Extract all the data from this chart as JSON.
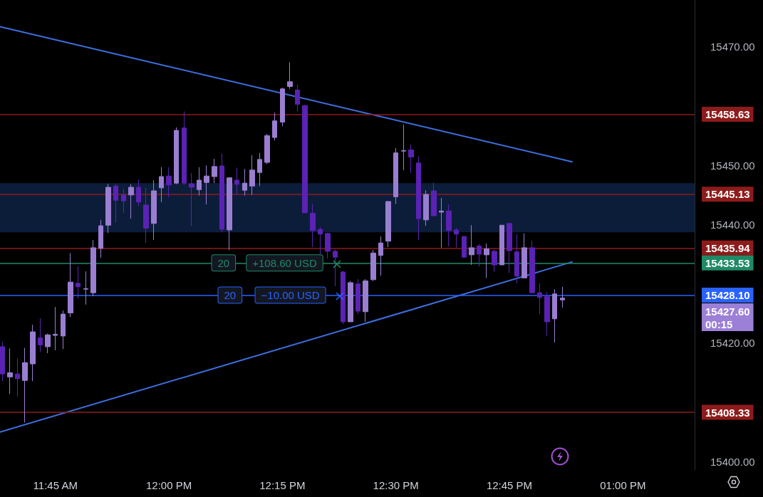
{
  "chart_data": {
    "type": "candlestick",
    "xlim": [
      11.628,
      13.158
    ],
    "xticks": [
      {
        "value": 11.75,
        "label": "11:45 AM"
      },
      {
        "value": 12,
        "label": "12:00 PM"
      },
      {
        "value": 12.25,
        "label": "12:15 PM"
      },
      {
        "value": 12.5,
        "label": "12:30 PM"
      },
      {
        "value": 12.75,
        "label": "12:45 PM"
      },
      {
        "value": 13,
        "label": "01:00 PM"
      }
    ],
    "ylim": [
      15398.6,
      15477.9
    ],
    "yticks": [
      {
        "value": 15400,
        "label": "15400.00"
      },
      {
        "value": 15420,
        "label": "15420.00"
      },
      {
        "value": 15440,
        "label": "15440.00"
      },
      {
        "value": 15450,
        "label": "15450.00"
      },
      {
        "value": 15470,
        "label": "15470.00"
      }
    ],
    "grid": false,
    "series": [
      {
        "type": "candlestick",
        "color": "#9a7ed1",
        "x": [
          11.65,
          11.6833,
          11.7,
          11.7333,
          11.75,
          11.7667,
          11.7833,
          11.8167,
          11.8333,
          11.85,
          11.8667,
          11.9167,
          11.9667,
          11.9833,
          12.0167,
          12.0667,
          12.0833,
          12.1,
          12.1333,
          12.1667,
          12.1833,
          12.2,
          12.2167,
          12.2333,
          12.25,
          12.2667,
          12.4,
          12.4333,
          12.45,
          12.4667,
          12.4833,
          12.5,
          12.5167,
          12.5667,
          12.6,
          12.6667,
          12.7,
          12.7333,
          12.7833,
          12.85,
          12.8667
        ],
        "ohlc": [
          [
            15414.3,
            15419.1,
            15411.4,
            15415.0
          ],
          [
            15413.7,
            15419.2,
            15406.6,
            15416.7
          ],
          [
            15416.5,
            15423.1,
            15413.6,
            15421.9
          ],
          [
            15419.4,
            15421.6,
            15418.3,
            15421.4
          ],
          [
            15421.3,
            15426.1,
            15418.8,
            15421.5
          ],
          [
            15421.2,
            15425.5,
            15419.0,
            15424.9
          ],
          [
            15425.1,
            15435.2,
            15424.4,
            15430.3
          ],
          [
            15429.1,
            15432.1,
            15426.5,
            15429.2
          ],
          [
            15428.5,
            15437.4,
            15427.9,
            15436.1
          ],
          [
            15436.0,
            15440.8,
            15434.4,
            15439.8
          ],
          [
            15439.9,
            15446.9,
            15438.6,
            15446.3
          ],
          [
            15445.0,
            15446.8,
            15441.0,
            15446.3
          ],
          [
            15440.2,
            15447.5,
            15437.4,
            15445.7
          ],
          [
            15446.2,
            15449.7,
            15443.8,
            15448.1
          ],
          [
            15447.0,
            15456.4,
            15446.8,
            15455.9
          ],
          [
            15445.9,
            15449.7,
            15444.9,
            15447.5
          ],
          [
            15447.1,
            15450.0,
            15443.4,
            15448.2
          ],
          [
            15448.1,
            15451.1,
            15447.0,
            15449.8
          ],
          [
            15439.1,
            15447.9,
            15435.7,
            15447.9
          ],
          [
            15445.8,
            15449.4,
            15444.9,
            15447.0
          ],
          [
            15446.5,
            15451.7,
            15445.0,
            15449.2
          ],
          [
            15448.8,
            15452.1,
            15446.5,
            15451.0
          ],
          [
            15450.5,
            15455.3,
            15450.2,
            15455.0
          ],
          [
            15454.7,
            15458.9,
            15454.2,
            15457.5
          ],
          [
            15457.3,
            15463.1,
            15456.6,
            15462.9
          ],
          [
            15463.3,
            15467.4,
            15462.9,
            15464.1
          ],
          [
            15423.6,
            15430.5,
            15423.6,
            15430.2
          ],
          [
            15425.3,
            15430.8,
            15423.6,
            15430.5
          ],
          [
            15430.7,
            15435.7,
            15430.5,
            15435.2
          ],
          [
            15434.8,
            15438.0,
            15431.4,
            15436.9
          ],
          [
            15437.2,
            15443.9,
            15436.2,
            15443.9
          ],
          [
            15444.7,
            15452.9,
            15443.5,
            15452.1
          ],
          [
            15452.4,
            15456.9,
            15449.2,
            15452.5
          ],
          [
            15440.8,
            15445.8,
            15439.8,
            15445.1
          ],
          [
            15442.1,
            15444.5,
            15436.1,
            15442.3
          ],
          [
            15434.9,
            15439.9,
            15433.2,
            15436.1
          ],
          [
            15434.9,
            15436.8,
            15431.0,
            15435.9
          ],
          [
            15433.2,
            15439.9,
            15433.2,
            15439.9
          ],
          [
            15431.0,
            15438.5,
            15431.0,
            15436.1
          ],
          [
            15424.1,
            15429.1,
            15420.1,
            15428.3
          ],
          [
            15427.3,
            15429.5,
            15426.0,
            15427.6
          ]
        ]
      },
      {
        "type": "candlestick",
        "color": "#5b22b5",
        "x": [
          11.6333,
          11.6667,
          11.7167,
          11.8,
          11.8833,
          11.9,
          11.9333,
          11.95,
          12,
          12.0333,
          12.05,
          12.1167,
          12.15,
          12.2833,
          12.3,
          12.3167,
          12.3333,
          12.35,
          12.3667,
          12.3833,
          12.4167,
          12.5333,
          12.55,
          12.5833,
          12.6167,
          12.6333,
          12.65,
          12.6833,
          12.7167,
          12.75,
          12.7667,
          12.8,
          12.8167,
          12.8333
        ],
        "ohlc": [
          [
            15419.4,
            15420.2,
            15413.6,
            15414.8
          ],
          [
            15414.8,
            15417.4,
            15411.0,
            15414.0
          ],
          [
            15420.9,
            15424.2,
            15418.5,
            15419.7
          ],
          [
            15430.1,
            15433.0,
            15427.5,
            15429.5
          ],
          [
            15446.5,
            15446.9,
            15440.4,
            15444.1
          ],
          [
            15445.0,
            15446.0,
            15442.0,
            15444.0
          ],
          [
            15446.3,
            15447.6,
            15443.1,
            15443.8
          ],
          [
            15443.3,
            15446.2,
            15436.9,
            15439.4
          ],
          [
            15448.2,
            15449.7,
            15444.6,
            15446.7
          ],
          [
            15456.3,
            15459.1,
            15446.7,
            15447.0
          ],
          [
            15446.9,
            15448.7,
            15439.8,
            15446.3
          ],
          [
            15449.9,
            15452.0,
            15438.7,
            15439.2
          ],
          [
            15447.5,
            15449.6,
            15445.1,
            15446.8
          ],
          [
            15462.7,
            15463.6,
            15459.1,
            15460.3
          ],
          [
            15460.1,
            15460.2,
            15441.9,
            15442.0
          ],
          [
            15441.9,
            15443.5,
            15436.2,
            15439.0
          ],
          [
            15439.2,
            15439.6,
            15435.0,
            15438.4
          ],
          [
            15438.5,
            15438.6,
            15434.3,
            15435.5
          ],
          [
            15435.5,
            15435.8,
            15429.6,
            15434.5
          ],
          [
            15432.0,
            15432.2,
            15423.2,
            15423.6
          ],
          [
            15430.0,
            15430.8,
            15424.9,
            15425.4
          ],
          [
            15452.6,
            15453.5,
            15448.7,
            15451.4
          ],
          [
            15450.4,
            15451.5,
            15437.4,
            15441.0
          ],
          [
            15445.7,
            15447.1,
            15441.5,
            15441.5
          ],
          [
            15442.3,
            15443.4,
            15436.3,
            15439.0
          ],
          [
            15439.1,
            15439.4,
            15436.1,
            15438.4
          ],
          [
            15438.0,
            15438.0,
            15434.4,
            15434.5
          ],
          [
            15436.4,
            15436.7,
            15432.9,
            15435.0
          ],
          [
            15435.5,
            15435.8,
            15432.0,
            15433.2
          ],
          [
            15440.2,
            15440.3,
            15431.8,
            15435.6
          ],
          [
            15435.4,
            15438.4,
            15430.1,
            15431.3
          ],
          [
            15436.1,
            15437.3,
            15428.5,
            15428.5
          ],
          [
            15428.5,
            15430.1,
            15424.9,
            15427.7
          ],
          [
            15427.9,
            15428.6,
            15421.2,
            15423.6
          ]
        ]
      },
      {
        "type": "line",
        "color": "#3d6fe0",
        "marker": "none",
        "x": [
          11.628,
          12.888
        ],
        "values": [
          15473.4,
          15450.6
        ]
      },
      {
        "type": "line",
        "color": "#3d6fe0",
        "marker": "none",
        "x": [
          11.628,
          12.888
        ],
        "values": [
          15405.0,
          15433.7
        ]
      }
    ],
    "bands": [
      {
        "axis": "y",
        "from": 15438.7,
        "to": 15447.0,
        "color": "#0c1d3a"
      }
    ],
    "ref_lines": [
      {
        "axis": "y",
        "value": 15458.63,
        "label": "15458.63",
        "color": "#8e1b1b"
      },
      {
        "axis": "y",
        "value": 15445.13,
        "label": "15445.13",
        "color": "#8e1b1b"
      },
      {
        "axis": "y",
        "value": 15435.94,
        "label": "15435.94",
        "color": "#8e1b1b"
      },
      {
        "axis": "y",
        "value": 15433.53,
        "label": "15433.53",
        "color": "#1f8a66"
      },
      {
        "axis": "y",
        "value": 15428.1,
        "label": "15428.10",
        "color": "#2962ff"
      },
      {
        "axis": "y",
        "value": 15408.33,
        "label": "15408.33",
        "color": "#8e1b1b"
      }
    ],
    "annotations": [
      {
        "text": "20",
        "x": 12.1204,
        "y": 15433.53
      },
      {
        "text": "+108.60 USD",
        "x": 12.2549,
        "y": 15433.53
      },
      {
        "text": "20",
        "x": 12.1346,
        "y": 15428.1
      },
      {
        "text": "−10.00 USD",
        "x": 12.2676,
        "y": 15428.1
      },
      "15427.60\n00:15"
    ]
  }
}
